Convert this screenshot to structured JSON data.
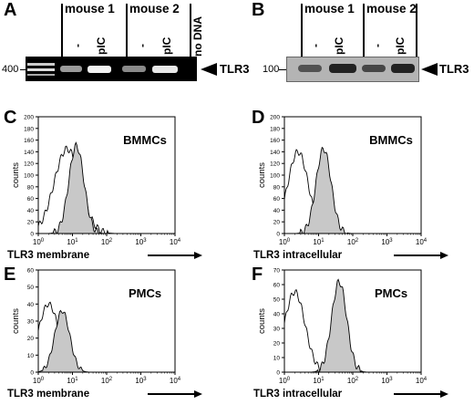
{
  "panel_A": {
    "letter": "A",
    "groups": [
      "mouse 1",
      "mouse 2"
    ],
    "lanes": [
      "-",
      "pIC",
      "-",
      "pIC",
      "no DNA"
    ],
    "size_marker": "400",
    "target": "TLR3"
  },
  "panel_B": {
    "letter": "B",
    "groups": [
      "mouse 1",
      "mouse 2"
    ],
    "lanes": [
      "-",
      "pIC",
      "-",
      "pIC"
    ],
    "size_marker": "100",
    "target": "TLR3"
  },
  "chart_data": [
    {
      "panel": "C",
      "type": "line",
      "cell_type": "BMMCs",
      "xlabel": "TLR3 membrane",
      "ylabel": "counts",
      "xscale": "log",
      "xlim": [
        1,
        10000
      ],
      "ylim": [
        0,
        200
      ],
      "yticks": [
        "0",
        "20",
        "40",
        "60",
        "80",
        "100",
        "120",
        "140",
        "160",
        "180",
        "200"
      ],
      "xticks": [
        "10^0",
        "10^1",
        "10^2",
        "10^3",
        "10^4"
      ],
      "series": [
        {
          "fill": "none",
          "peak_x": 7,
          "peak_y": 145
        },
        {
          "fill": "#c8c8c8",
          "peak_x": 13,
          "peak_y": 150
        }
      ]
    },
    {
      "panel": "D",
      "type": "line",
      "cell_type": "BMMCs",
      "xlabel": "TLR3 intracellular",
      "ylabel": "counts",
      "xscale": "log",
      "xlim": [
        1,
        10000
      ],
      "ylim": [
        0,
        200
      ],
      "yticks": [
        "0",
        "20",
        "40",
        "60",
        "80",
        "100",
        "120",
        "140",
        "160",
        "180",
        "200"
      ],
      "xticks": [
        "10^0",
        "10^1",
        "10^2",
        "10^3",
        "10^4"
      ],
      "series": [
        {
          "fill": "none",
          "peak_x": 2.5,
          "peak_y": 140
        },
        {
          "fill": "#c8c8c8",
          "peak_x": 14,
          "peak_y": 145
        }
      ]
    },
    {
      "panel": "E",
      "type": "line",
      "cell_type": "PMCs",
      "xlabel": "TLR3 membrane",
      "ylabel": "counts",
      "xscale": "log",
      "xlim": [
        1,
        10000
      ],
      "ylim": [
        0,
        60
      ],
      "yticks": [
        "0",
        "10",
        "20",
        "30",
        "40",
        "50",
        "60"
      ],
      "xticks": [
        "10^0",
        "10^1",
        "10^2",
        "10^3",
        "10^4"
      ],
      "series": [
        {
          "fill": "none",
          "peak_x": 2,
          "peak_y": 40
        },
        {
          "fill": "#c8c8c8",
          "peak_x": 5,
          "peak_y": 36
        }
      ]
    },
    {
      "panel": "F",
      "type": "line",
      "cell_type": "PMCs",
      "xlabel": "TLR3 intracellular",
      "ylabel": "counts",
      "xscale": "log",
      "xlim": [
        1,
        10000
      ],
      "ylim": [
        0,
        70
      ],
      "yticks": [
        "0",
        "10",
        "20",
        "30",
        "40",
        "50",
        "60",
        "70"
      ],
      "xticks": [
        "10^0",
        "10^1",
        "10^2",
        "10^3",
        "10^4"
      ],
      "series": [
        {
          "fill": "none",
          "peak_x": 2,
          "peak_y": 55
        },
        {
          "fill": "#c8c8c8",
          "peak_x": 40,
          "peak_y": 62
        }
      ]
    }
  ]
}
